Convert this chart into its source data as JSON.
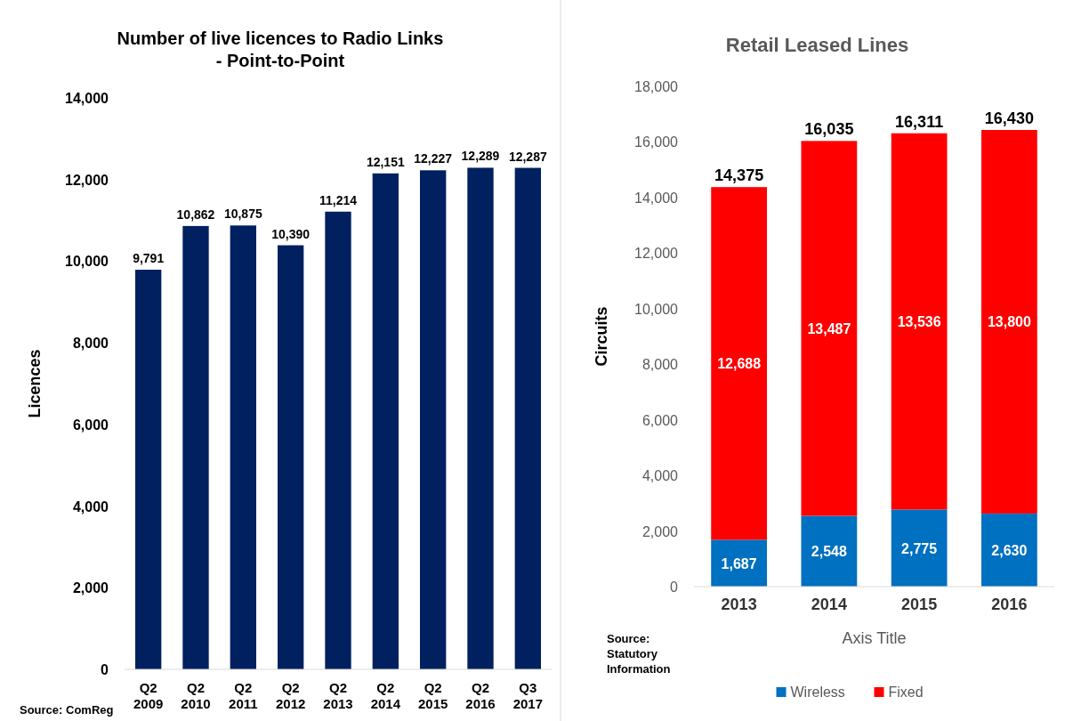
{
  "chart_data": [
    {
      "type": "bar",
      "title": "Number of live licences to Radio Links\n- Point-to-Point",
      "ylabel": "Licences",
      "categories": [
        "Q2 2009",
        "Q2 2010",
        "Q2 2011",
        "Q2 2012",
        "Q2 2013",
        "Q2 2014",
        "Q2 2015",
        "Q2 2016",
        "Q3 2017"
      ],
      "values": [
        9791,
        10862,
        10875,
        10390,
        11214,
        12151,
        12227,
        12289,
        12287
      ],
      "color": "#002060",
      "value_labels": [
        "9,791",
        "10,862",
        "10,875",
        "10,390",
        "11,214",
        "12,151",
        "12,227",
        "12,289",
        "12,287"
      ],
      "ylim": [
        0,
        14000
      ],
      "yticks": [
        {
          "value": 0,
          "label": "0"
        },
        {
          "value": 2000,
          "label": "2,000"
        },
        {
          "value": 4000,
          "label": "4,000"
        },
        {
          "value": 6000,
          "label": "6,000"
        },
        {
          "value": 8000,
          "label": "8,000"
        },
        {
          "value": 10000,
          "label": "10,000"
        },
        {
          "value": 12000,
          "label": "12,000"
        },
        {
          "value": 14000,
          "label": "14,000"
        }
      ],
      "annotations": [
        "Source: ComReg"
      ]
    },
    {
      "type": "bar",
      "title": "Retail Leased Lines",
      "ylabel": "Circuits",
      "xlabel": "Axis Title",
      "categories": [
        "2013",
        "2014",
        "2015",
        "2016"
      ],
      "stacked": true,
      "series": [
        {
          "name": "Wireless",
          "color": "#0070c0",
          "values": [
            1687,
            2548,
            2775,
            2630
          ],
          "value_labels": [
            "1,687",
            "2,548",
            "2,775",
            "2,630"
          ]
        },
        {
          "name": "Fixed",
          "color": "#ff0000",
          "values": [
            12688,
            13487,
            13536,
            13800
          ],
          "value_labels": [
            "12,688",
            "13,487",
            "13,536",
            "13,800"
          ]
        }
      ],
      "totals": [
        "14,375",
        "16,035",
        "16,311",
        "16,430"
      ],
      "ylim": [
        0,
        18000
      ],
      "yticks": [
        {
          "value": 0,
          "label": "0"
        },
        {
          "value": 2000,
          "label": "2,000"
        },
        {
          "value": 4000,
          "label": "4,000"
        },
        {
          "value": 6000,
          "label": "6,000"
        },
        {
          "value": 8000,
          "label": "8,000"
        },
        {
          "value": 10000,
          "label": "10,000"
        },
        {
          "value": 12000,
          "label": "12,000"
        },
        {
          "value": 14000,
          "label": "14,000"
        },
        {
          "value": 16000,
          "label": "16,000"
        },
        {
          "value": 18000,
          "label": "18,000"
        }
      ],
      "legend": "bottom",
      "annotations": [
        "Source: Statutory Information"
      ]
    }
  ]
}
